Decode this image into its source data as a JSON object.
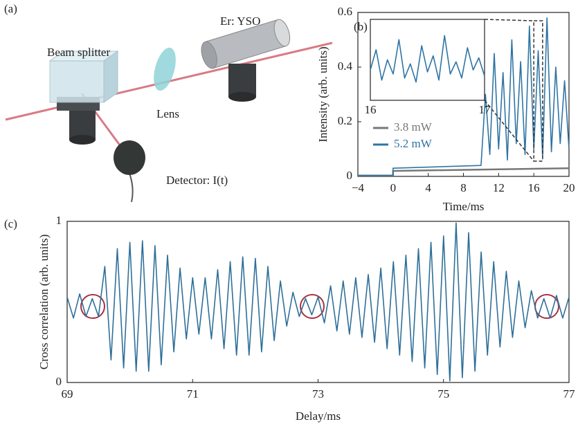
{
  "diagram": {
    "panel_label": "(a)",
    "beam_splitter": "Beam splitter",
    "lens": "Lens",
    "crystal": "Er: YSO",
    "detector": "Detector: I(t)"
  },
  "chart_data": [
    {
      "type": "line",
      "panel_label": "(b)",
      "xlabel": "Time/ms",
      "ylabel": "Intensity (arb. units)",
      "xlim": [
        -4,
        20
      ],
      "ylim": [
        0,
        0.6
      ],
      "xticks": [
        {
          "value": -4,
          "label": "−4"
        },
        0,
        4,
        8,
        12,
        16,
        20
      ],
      "yticks": [
        0,
        0.2,
        0.4,
        0.6
      ],
      "legend": "lower left",
      "series": [
        {
          "name": "3.8 mW",
          "color": "#777777",
          "x": [
            -4,
            0,
            0,
            20
          ],
          "values": [
            0.003,
            0.003,
            0.02,
            0.03
          ]
        },
        {
          "name": "5.2 mW",
          "color": "#2f74a4",
          "x": [
            -4,
            0,
            0,
            10,
            10.5,
            11,
            11.5,
            12,
            12.5,
            13,
            13.5,
            14,
            14.5,
            15,
            15.5,
            16,
            16.5,
            17,
            17.5,
            18,
            18.5,
            19,
            19.5,
            20
          ],
          "values": [
            0.003,
            0.003,
            0.03,
            0.04,
            0.3,
            0.08,
            0.45,
            0.1,
            0.38,
            0.06,
            0.5,
            0.12,
            0.42,
            0.08,
            0.55,
            0.1,
            0.46,
            0.07,
            0.58,
            0.09,
            0.4,
            0.12,
            0.35,
            0.1
          ]
        }
      ]
    },
    {
      "type": "line",
      "xlim": [
        16,
        17
      ],
      "ylim": [
        0.2,
        0.6
      ],
      "xticks": [
        16,
        17
      ],
      "series": [
        {
          "color": "#2f74a4",
          "x": [
            16,
            16.05,
            16.1,
            16.15,
            16.2,
            16.25,
            16.3,
            16.35,
            16.4,
            16.45,
            16.5,
            16.55,
            16.6,
            16.65,
            16.7,
            16.75,
            16.8,
            16.85,
            16.9,
            16.95,
            17
          ],
          "values": [
            0.35,
            0.45,
            0.3,
            0.4,
            0.33,
            0.5,
            0.31,
            0.38,
            0.29,
            0.47,
            0.34,
            0.42,
            0.3,
            0.52,
            0.33,
            0.39,
            0.31,
            0.46,
            0.35,
            0.41,
            0.32
          ]
        }
      ]
    },
    {
      "type": "line",
      "panel_label": "(c)",
      "xlabel": "Delay/ms",
      "ylabel": "Cross correlation (arb. units)",
      "xlim": [
        69,
        77
      ],
      "ylim": [
        0,
        1
      ],
      "xticks": [
        69,
        71,
        73,
        75,
        77
      ],
      "yticks": [
        0,
        1
      ],
      "series": [
        {
          "color": "#2e6f99",
          "x": [
            69,
            69.1,
            69.2,
            69.3,
            69.4,
            69.5,
            69.6,
            69.7,
            69.8,
            69.9,
            70,
            70.1,
            70.2,
            70.3,
            70.4,
            70.5,
            70.6,
            70.7,
            70.8,
            70.9,
            71,
            71.1,
            71.2,
            71.3,
            71.4,
            71.5,
            71.6,
            71.7,
            71.8,
            71.9,
            72,
            72.1,
            72.2,
            72.3,
            72.4,
            72.5,
            72.6,
            72.7,
            72.8,
            72.9,
            73,
            73.1,
            73.2,
            73.3,
            73.4,
            73.5,
            73.6,
            73.7,
            73.8,
            73.9,
            74,
            74.1,
            74.2,
            74.3,
            74.4,
            74.5,
            74.6,
            74.7,
            74.8,
            74.9,
            75,
            75.1,
            75.2,
            75.3,
            75.4,
            75.5,
            75.6,
            75.7,
            75.8,
            75.9,
            76,
            76.1,
            76.2,
            76.3,
            76.4,
            76.5,
            76.6,
            76.7,
            76.8,
            76.9,
            77
          ],
          "values": [
            0.53,
            0.4,
            0.55,
            0.41,
            0.52,
            0.41,
            0.72,
            0.14,
            0.83,
            0.09,
            0.87,
            0.07,
            0.88,
            0.07,
            0.85,
            0.11,
            0.79,
            0.19,
            0.71,
            0.27,
            0.65,
            0.3,
            0.65,
            0.27,
            0.7,
            0.21,
            0.75,
            0.17,
            0.78,
            0.17,
            0.77,
            0.19,
            0.72,
            0.26,
            0.63,
            0.35,
            0.56,
            0.41,
            0.52,
            0.42,
            0.53,
            0.37,
            0.6,
            0.32,
            0.63,
            0.3,
            0.65,
            0.28,
            0.67,
            0.25,
            0.71,
            0.21,
            0.75,
            0.17,
            0.79,
            0.13,
            0.83,
            0.09,
            0.87,
            0.05,
            0.91,
            0.01,
            0.99,
            0.03,
            0.93,
            0.07,
            0.81,
            0.17,
            0.75,
            0.22,
            0.69,
            0.28,
            0.63,
            0.34,
            0.57,
            0.4,
            0.52,
            0.4,
            0.54,
            0.4,
            0.53
          ]
        }
      ]
    }
  ]
}
